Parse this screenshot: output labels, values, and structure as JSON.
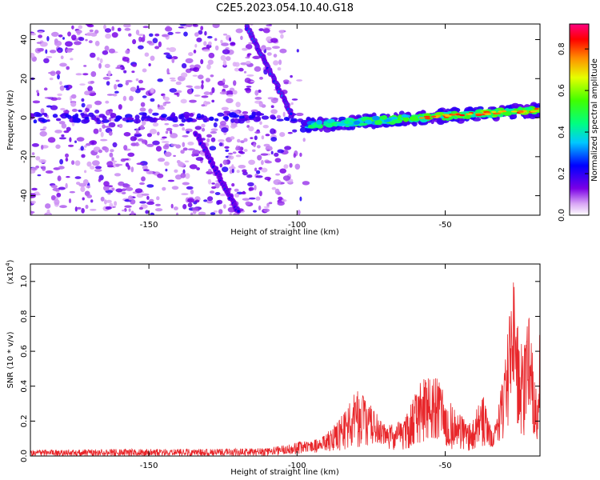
{
  "title": "C2E5.2023.054.10.40.G18",
  "chart_data": [
    {
      "type": "heatmap",
      "xlabel": "Height of straight line (km)",
      "ylabel": "Frequency (Hz)",
      "xlim": [
        -190,
        -18
      ],
      "ylim": [
        -50,
        48
      ],
      "xticks": [
        -150,
        -100,
        -50
      ],
      "yticks": [
        -40,
        -20,
        0,
        20,
        40
      ],
      "colorbar": {
        "label": "Normalized spectral amplitude",
        "range": [
          0.0,
          0.92
        ],
        "ticks": [
          "0.0",
          "0.2",
          "0.4",
          "0.6",
          "0.8"
        ],
        "colormap": "rainbow (white-violet-blue-cyan-green-yellow-red-magenta)"
      },
      "features": [
        {
          "name": "upper descending streak",
          "x": [
            -117,
            -102
          ],
          "freq": [
            47,
            2
          ],
          "amplitude": 0.3
        },
        {
          "name": "lower descending streak",
          "x": [
            -134,
            -120
          ],
          "freq": [
            -8,
            -48
          ],
          "amplitude": 0.25
        },
        {
          "name": "main horizontal band",
          "x": [
            -98,
            -18
          ],
          "freq": [
            -6,
            5
          ],
          "amplitude": 0.65
        },
        {
          "name": "background noise",
          "x": [
            -190,
            -98
          ],
          "freq": [
            -50,
            48
          ],
          "amplitude": 0.12
        }
      ]
    },
    {
      "type": "line",
      "xlabel": "Height of straight line (km)",
      "ylabel": "SNR (10 * v/v)",
      "yscale_label": "(x10",
      "yscale_exp": "4",
      "scale": 10000,
      "xlim": [
        -190,
        -18
      ],
      "ylim": [
        0,
        1.1
      ],
      "xticks": [
        -150,
        -100,
        -50
      ],
      "yticks": [
        "0.0",
        "0.2",
        "0.4",
        "0.6",
        "0.8",
        "1.0"
      ],
      "color": "#e8262a",
      "envelope": [
        {
          "x": -190,
          "low": 0.0,
          "high": 0.035
        },
        {
          "x": -160,
          "low": 0.0,
          "high": 0.04
        },
        {
          "x": -130,
          "low": 0.0,
          "high": 0.04
        },
        {
          "x": -110,
          "low": 0.0,
          "high": 0.045
        },
        {
          "x": -100,
          "low": 0.01,
          "high": 0.08
        },
        {
          "x": -92,
          "low": 0.02,
          "high": 0.1
        },
        {
          "x": -86,
          "low": 0.03,
          "high": 0.2
        },
        {
          "x": -80,
          "low": 0.05,
          "high": 0.38
        },
        {
          "x": -75,
          "low": 0.06,
          "high": 0.3
        },
        {
          "x": -70,
          "low": 0.04,
          "high": 0.18
        },
        {
          "x": -64,
          "low": 0.03,
          "high": 0.2
        },
        {
          "x": -58,
          "low": 0.08,
          "high": 0.44
        },
        {
          "x": -53,
          "low": 0.1,
          "high": 0.45
        },
        {
          "x": -48,
          "low": 0.04,
          "high": 0.3
        },
        {
          "x": -42,
          "low": 0.03,
          "high": 0.18
        },
        {
          "x": -37,
          "low": 0.06,
          "high": 0.35
        },
        {
          "x": -34,
          "low": 0.05,
          "high": 0.12
        },
        {
          "x": -30,
          "low": 0.1,
          "high": 0.5
        },
        {
          "x": -27,
          "low": 0.25,
          "high": 1.07
        },
        {
          "x": -24,
          "low": 0.1,
          "high": 0.6
        },
        {
          "x": -21,
          "low": 0.15,
          "high": 0.86
        },
        {
          "x": -19,
          "low": 0.05,
          "high": 0.3
        },
        {
          "x": -18,
          "low": 0.3,
          "high": 0.75
        }
      ]
    }
  ]
}
